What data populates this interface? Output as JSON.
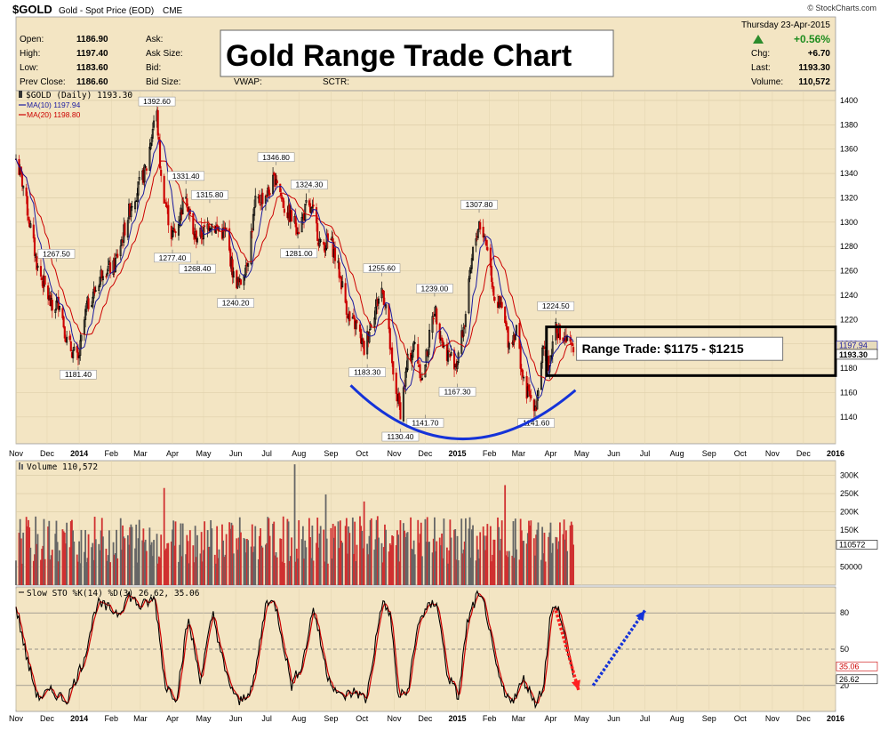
{
  "header": {
    "symbol": "$GOLD",
    "name": "Gold - Spot Price (EOD)",
    "exchange": "CME",
    "copyright": "© StockCharts.com",
    "date": "Thursday  23-Apr-2015",
    "fields_left": [
      {
        "label": "Open:",
        "value": "1186.90"
      },
      {
        "label": "High:",
        "value": "1197.40"
      },
      {
        "label": "Low:",
        "value": "1183.60"
      },
      {
        "label": "Prev Close:",
        "value": "1186.60"
      }
    ],
    "fields_mid": [
      "Ask:",
      "Ask Size:",
      "Bid:",
      "Bid Size:"
    ],
    "fields_extra": [
      "VWAP:",
      "SCTR:"
    ],
    "pct_change": "+0.56%",
    "fields_right": [
      {
        "label": "Chg:",
        "value": "+6.70"
      },
      {
        "label": "Last:",
        "value": "1193.30"
      },
      {
        "label": "Volume:",
        "value": "110,572"
      }
    ],
    "title_box": "Gold Range Trade Chart"
  },
  "colors": {
    "panel_bg": "#f3e5c3",
    "up": "#000000",
    "down": "#cc0000",
    "ma10": "#1a1aa0",
    "ma20": "#cc0000",
    "arc": "#1533d8",
    "vol_up": "#666666",
    "vol_down": "#d03030",
    "sto_k": "#000000",
    "sto_d": "#cc0000"
  },
  "chart_data": [
    {
      "type": "candlestick",
      "legend": [
        "$GOLD (Daily) 1193.30",
        "MA(10) 1197.94",
        "MA(20) 1198.80"
      ],
      "x_ticks": [
        "Nov",
        "Dec",
        "2014",
        "Feb",
        "Mar",
        "Apr",
        "May",
        "Jun",
        "Jul",
        "Aug",
        "Sep",
        "Oct",
        "Nov",
        "Dec",
        "2015",
        "Feb",
        "Mar",
        "Apr",
        "May",
        "Jun",
        "Jul",
        "Aug",
        "Sep",
        "Oct",
        "Nov",
        "Dec",
        "2016"
      ],
      "x_range": [
        "2013-11-01",
        "2016-01-01"
      ],
      "y_ticks": [
        1140,
        1160,
        1180,
        1200,
        1220,
        1240,
        1260,
        1280,
        1300,
        1320,
        1340,
        1360,
        1380,
        1400
      ],
      "ylim": [
        1118,
        1408
      ],
      "last_price_tag": "1193.30",
      "ma_tag": "1197.94",
      "price_path": [
        [
          "2013-11-01",
          1352
        ],
        [
          "2013-11-08",
          1330
        ],
        [
          "2013-11-15",
          1295
        ],
        [
          "2013-11-22",
          1262
        ],
        [
          "2013-11-29",
          1247
        ],
        [
          "2013-12-06",
          1228
        ],
        [
          "2013-12-13",
          1236
        ],
        [
          "2013-12-20",
          1202
        ],
        [
          "2013-12-31",
          1186
        ],
        [
          "2014-01-08",
          1230
        ],
        [
          "2014-01-17",
          1245
        ],
        [
          "2014-01-24",
          1262
        ],
        [
          "2014-02-03",
          1262
        ],
        [
          "2014-02-10",
          1282
        ],
        [
          "2014-02-20",
          1315
        ],
        [
          "2014-02-28",
          1330
        ],
        [
          "2014-03-07",
          1345
        ],
        [
          "2014-03-14",
          1383
        ],
        [
          "2014-03-17",
          1388
        ],
        [
          "2014-03-21",
          1335
        ],
        [
          "2014-03-31",
          1290
        ],
        [
          "2014-04-04",
          1292
        ],
        [
          "2014-04-14",
          1325
        ],
        [
          "2014-04-21",
          1288
        ],
        [
          "2014-04-30",
          1290
        ],
        [
          "2014-05-07",
          1300
        ],
        [
          "2014-05-16",
          1293
        ],
        [
          "2014-05-23",
          1290
        ],
        [
          "2014-05-30",
          1255
        ],
        [
          "2014-06-05",
          1248
        ],
        [
          "2014-06-13",
          1272
        ],
        [
          "2014-06-20",
          1315
        ],
        [
          "2014-07-03",
          1325
        ],
        [
          "2014-07-10",
          1338
        ],
        [
          "2014-07-18",
          1312
        ],
        [
          "2014-07-25",
          1303
        ],
        [
          "2014-08-01",
          1295
        ],
        [
          "2014-08-08",
          1312
        ],
        [
          "2014-08-15",
          1307
        ],
        [
          "2014-08-22",
          1280
        ],
        [
          "2014-09-01",
          1285
        ],
        [
          "2014-09-10",
          1255
        ],
        [
          "2014-09-19",
          1218
        ],
        [
          "2014-09-26",
          1215
        ],
        [
          "2014-10-03",
          1195
        ],
        [
          "2014-10-10",
          1220
        ],
        [
          "2014-10-20",
          1245
        ],
        [
          "2014-10-24",
          1232
        ],
        [
          "2014-10-31",
          1172
        ],
        [
          "2014-11-07",
          1145
        ],
        [
          "2014-11-14",
          1185
        ],
        [
          "2014-11-21",
          1200
        ],
        [
          "2014-11-28",
          1170
        ],
        [
          "2014-12-05",
          1205
        ],
        [
          "2014-12-10",
          1230
        ],
        [
          "2014-12-19",
          1196
        ],
        [
          "2014-12-31",
          1184
        ],
        [
          "2015-01-08",
          1218
        ],
        [
          "2015-01-16",
          1275
        ],
        [
          "2015-01-22",
          1300
        ],
        [
          "2015-01-30",
          1280
        ],
        [
          "2015-02-06",
          1238
        ],
        [
          "2015-02-13",
          1228
        ],
        [
          "2015-02-20",
          1200
        ],
        [
          "2015-02-27",
          1212
        ],
        [
          "2015-03-06",
          1166
        ],
        [
          "2015-03-13",
          1155
        ],
        [
          "2015-03-18",
          1150
        ],
        [
          "2015-03-24",
          1193
        ],
        [
          "2015-03-31",
          1183
        ],
        [
          "2015-04-06",
          1218
        ],
        [
          "2015-04-10",
          1205
        ],
        [
          "2015-04-16",
          1202
        ],
        [
          "2015-04-23",
          1193
        ]
      ],
      "annotations": [
        {
          "text": "1392.60",
          "date": "2014-03-17",
          "price": 1392.6,
          "pos": "above"
        },
        {
          "text": "1346.80",
          "date": "2014-07-10",
          "price": 1346.8,
          "pos": "above"
        },
        {
          "text": "1331.40",
          "date": "2014-04-14",
          "price": 1331.4,
          "pos": "above"
        },
        {
          "text": "1324.30",
          "date": "2014-08-11",
          "price": 1324.3,
          "pos": "above"
        },
        {
          "text": "1315.80",
          "date": "2014-05-07",
          "price": 1315.8,
          "pos": "above"
        },
        {
          "text": "1307.80",
          "date": "2015-01-22",
          "price": 1307.8,
          "pos": "above"
        },
        {
          "text": "1267.50",
          "date": "2013-12-10",
          "price": 1267.5,
          "pos": "above"
        },
        {
          "text": "1277.40",
          "date": "2014-04-01",
          "price": 1277.4,
          "pos": "below"
        },
        {
          "text": "1268.40",
          "date": "2014-04-25",
          "price": 1268.4,
          "pos": "below"
        },
        {
          "text": "1281.00",
          "date": "2014-08-01",
          "price": 1281.0,
          "pos": "below"
        },
        {
          "text": "1255.60",
          "date": "2014-10-20",
          "price": 1255.6,
          "pos": "above"
        },
        {
          "text": "1240.20",
          "date": "2014-06-01",
          "price": 1240.2,
          "pos": "below"
        },
        {
          "text": "1239.00",
          "date": "2014-12-10",
          "price": 1239.0,
          "pos": "above"
        },
        {
          "text": "1224.50",
          "date": "2015-04-06",
          "price": 1224.5,
          "pos": "above"
        },
        {
          "text": "1181.40",
          "date": "2013-12-31",
          "price": 1181.4,
          "pos": "below"
        },
        {
          "text": "1183.30",
          "date": "2014-10-06",
          "price": 1183.3,
          "pos": "below"
        },
        {
          "text": "1167.30",
          "date": "2015-01-01",
          "price": 1167.3,
          "pos": "below"
        },
        {
          "text": "1141.70",
          "date": "2014-12-01",
          "price": 1141.7,
          "pos": "below"
        },
        {
          "text": "1141.60",
          "date": "2015-03-18",
          "price": 1141.6,
          "pos": "below"
        },
        {
          "text": "1130.40",
          "date": "2014-11-07",
          "price": 1130.4,
          "pos": "below"
        }
      ],
      "range_box": {
        "date_from": "2015-03-28",
        "date_to": "2016-01-01",
        "price_low": 1174,
        "price_high": 1214,
        "label": "Range Trade: $1175 - $1215"
      },
      "arc": {
        "date_from": "2014-09-20",
        "date_mid": "2015-01-01",
        "date_to": "2015-04-25",
        "price_start": 1166,
        "price_bottom": 1122,
        "price_end": 1162
      }
    },
    {
      "type": "bar",
      "legend": "Volume 110,572",
      "y_ticks": [
        "300K",
        "250K",
        "200K",
        "150K",
        "50000"
      ],
      "y_tick_values": [
        300000,
        250000,
        200000,
        150000,
        50000
      ],
      "ylim": [
        0,
        340000
      ],
      "last_tag": "110572",
      "typical_volume": 130000
    },
    {
      "type": "line",
      "legend": "Slow STO %K(14) %D(3) 26.62, 35.06",
      "y_ticks": [
        20,
        50,
        80
      ],
      "ylim": [
        0,
        100
      ],
      "tags": [
        "35.06",
        "26.62"
      ],
      "k_path": [
        [
          "2013-11-01",
          85
        ],
        [
          "2013-11-12",
          40
        ],
        [
          "2013-11-22",
          10
        ],
        [
          "2013-12-05",
          15
        ],
        [
          "2013-12-20",
          8
        ],
        [
          "2014-01-05",
          40
        ],
        [
          "2014-01-18",
          88
        ],
        [
          "2014-02-08",
          80
        ],
        [
          "2014-02-18",
          95
        ],
        [
          "2014-03-01",
          85
        ],
        [
          "2014-03-15",
          92
        ],
        [
          "2014-03-25",
          20
        ],
        [
          "2014-04-05",
          10
        ],
        [
          "2014-04-16",
          75
        ],
        [
          "2014-04-28",
          25
        ],
        [
          "2014-05-10",
          80
        ],
        [
          "2014-05-22",
          30
        ],
        [
          "2014-06-04",
          5
        ],
        [
          "2014-06-18",
          20
        ],
        [
          "2014-07-01",
          92
        ],
        [
          "2014-07-10",
          85
        ],
        [
          "2014-07-25",
          20
        ],
        [
          "2014-08-05",
          40
        ],
        [
          "2014-08-15",
          85
        ],
        [
          "2014-08-28",
          30
        ],
        [
          "2014-09-10",
          10
        ],
        [
          "2014-09-25",
          15
        ],
        [
          "2014-10-05",
          8
        ],
        [
          "2014-10-20",
          88
        ],
        [
          "2014-10-28",
          80
        ],
        [
          "2014-11-05",
          10
        ],
        [
          "2014-11-14",
          15
        ],
        [
          "2014-11-25",
          75
        ],
        [
          "2014-12-05",
          85
        ],
        [
          "2014-12-12",
          90
        ],
        [
          "2014-12-22",
          30
        ],
        [
          "2015-01-02",
          10
        ],
        [
          "2015-01-10",
          70
        ],
        [
          "2015-01-20",
          95
        ],
        [
          "2015-01-28",
          85
        ],
        [
          "2015-02-06",
          40
        ],
        [
          "2015-02-16",
          10
        ],
        [
          "2015-02-25",
          10
        ],
        [
          "2015-03-06",
          25
        ],
        [
          "2015-03-18",
          5
        ],
        [
          "2015-03-25",
          20
        ],
        [
          "2015-04-01",
          80
        ],
        [
          "2015-04-08",
          85
        ],
        [
          "2015-04-16",
          55
        ],
        [
          "2015-04-23",
          26.62
        ]
      ],
      "arrows": [
        {
          "color": "red",
          "from": [
            "2015-04-06",
            82
          ],
          "to": [
            "2015-04-28",
            16
          ]
        },
        {
          "color": "blue",
          "from": [
            "2015-05-12",
            20
          ],
          "to": [
            "2015-07-01",
            82
          ]
        }
      ]
    }
  ]
}
